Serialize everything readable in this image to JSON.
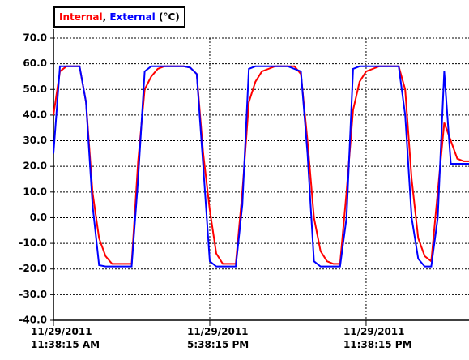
{
  "chart_data": {
    "type": "line",
    "unit": "(°C)",
    "legend_separator": ",",
    "grid": true,
    "ylim": [
      -40,
      70
    ],
    "yticks": [
      {
        "value": 70,
        "label": "70.0"
      },
      {
        "value": 60,
        "label": "60.0"
      },
      {
        "value": 50,
        "label": "50.0"
      },
      {
        "value": 40,
        "label": "40.0"
      },
      {
        "value": 30,
        "label": "30.0"
      },
      {
        "value": 20,
        "label": "20.0"
      },
      {
        "value": 10,
        "label": "10.0"
      },
      {
        "value": 0,
        "label": "0.0"
      },
      {
        "value": -10,
        "label": "-10.0"
      },
      {
        "value": -20,
        "label": "-20.0"
      },
      {
        "value": -30,
        "label": "-30.0"
      },
      {
        "value": -40,
        "label": "-40.0"
      }
    ],
    "xlim": [
      "2011-11-29T11:38:15",
      "2011-11-30T03:38:15"
    ],
    "xticks": [
      {
        "value": "2011-11-29T11:38:15",
        "label": "11/29/2011\n11:38:15 AM"
      },
      {
        "value": "2011-11-29T17:38:15",
        "label": "11/29/2011\n5:38:15 PM"
      },
      {
        "value": "2011-11-29T23:38:15",
        "label": "11/29/2011\n11:38:15 PM"
      }
    ],
    "x": [
      "2011-11-29T11:38:15",
      "2011-11-29T11:53:15",
      "2011-11-29T12:08:15",
      "2011-11-29T12:23:15",
      "2011-11-29T12:38:15",
      "2011-11-29T12:53:15",
      "2011-11-29T13:08:15",
      "2011-11-29T13:23:15",
      "2011-11-29T13:38:15",
      "2011-11-29T13:53:15",
      "2011-11-29T14:08:15",
      "2011-11-29T14:23:15",
      "2011-11-29T14:38:15",
      "2011-11-29T14:53:15",
      "2011-11-29T15:08:15",
      "2011-11-29T15:23:15",
      "2011-11-29T15:38:15",
      "2011-11-29T15:53:15",
      "2011-11-29T16:08:15",
      "2011-11-29T16:23:15",
      "2011-11-29T16:38:15",
      "2011-11-29T16:53:15",
      "2011-11-29T17:08:15",
      "2011-11-29T17:23:15",
      "2011-11-29T17:38:15",
      "2011-11-29T17:53:15",
      "2011-11-29T18:08:15",
      "2011-11-29T18:23:15",
      "2011-11-29T18:38:15",
      "2011-11-29T18:53:15",
      "2011-11-29T19:08:15",
      "2011-11-29T19:23:15",
      "2011-11-29T19:38:15",
      "2011-11-29T19:53:15",
      "2011-11-29T20:08:15",
      "2011-11-29T20:23:15",
      "2011-11-29T20:38:15",
      "2011-11-29T20:53:15",
      "2011-11-29T21:08:15",
      "2011-11-29T21:23:15",
      "2011-11-29T21:38:15",
      "2011-11-29T21:53:15",
      "2011-11-29T22:08:15",
      "2011-11-29T22:23:15",
      "2011-11-29T22:38:15",
      "2011-11-29T22:53:15",
      "2011-11-29T23:08:15",
      "2011-11-29T23:23:15",
      "2011-11-29T23:38:15",
      "2011-11-29T23:53:15",
      "2011-11-30T00:08:15",
      "2011-11-30T00:23:15",
      "2011-11-30T00:38:15",
      "2011-11-30T00:53:15",
      "2011-11-30T01:08:15",
      "2011-11-30T01:23:15",
      "2011-11-30T01:38:15",
      "2011-11-30T01:53:15",
      "2011-11-30T02:08:15",
      "2011-11-30T02:23:15",
      "2011-11-30T02:38:15",
      "2011-11-30T02:53:15",
      "2011-11-30T03:08:15",
      "2011-11-30T03:23:15",
      "2011-11-30T03:38:15"
    ],
    "series": [
      {
        "name": "Internal",
        "color": "#ff0000",
        "values": [
          40,
          57,
          59,
          59,
          59,
          45,
          10,
          -8,
          -15,
          -18,
          -18,
          -18,
          -18,
          22,
          50,
          55,
          58,
          59,
          59,
          59,
          59,
          58.5,
          56,
          25,
          3,
          -14,
          -18,
          -18,
          -18,
          10,
          45,
          53,
          57,
          58,
          59,
          59,
          59,
          59,
          56,
          30,
          0,
          -13,
          -17,
          -18,
          -18,
          10,
          42,
          53,
          57,
          58,
          59,
          59,
          59,
          59,
          50,
          15,
          -8,
          -15,
          -17,
          10,
          37,
          30,
          23,
          22,
          22
        ]
      },
      {
        "name": "External",
        "color": "#0000ff",
        "values": [
          25,
          59,
          59,
          59,
          59,
          45,
          5,
          -18.5,
          -19,
          -19,
          -19,
          -19,
          -19,
          15,
          57,
          59,
          59,
          59,
          59,
          59,
          59,
          58.5,
          56,
          20,
          -17,
          -19,
          -19,
          -19,
          -19,
          5,
          58,
          59,
          59,
          59,
          59,
          59,
          59,
          58,
          57,
          25,
          -17,
          -19,
          -19,
          -19,
          -19,
          0,
          58,
          59,
          59,
          59,
          59,
          59,
          59,
          59,
          40,
          0,
          -16,
          -19,
          -19,
          0,
          57,
          21,
          21,
          21,
          21
        ]
      }
    ]
  }
}
